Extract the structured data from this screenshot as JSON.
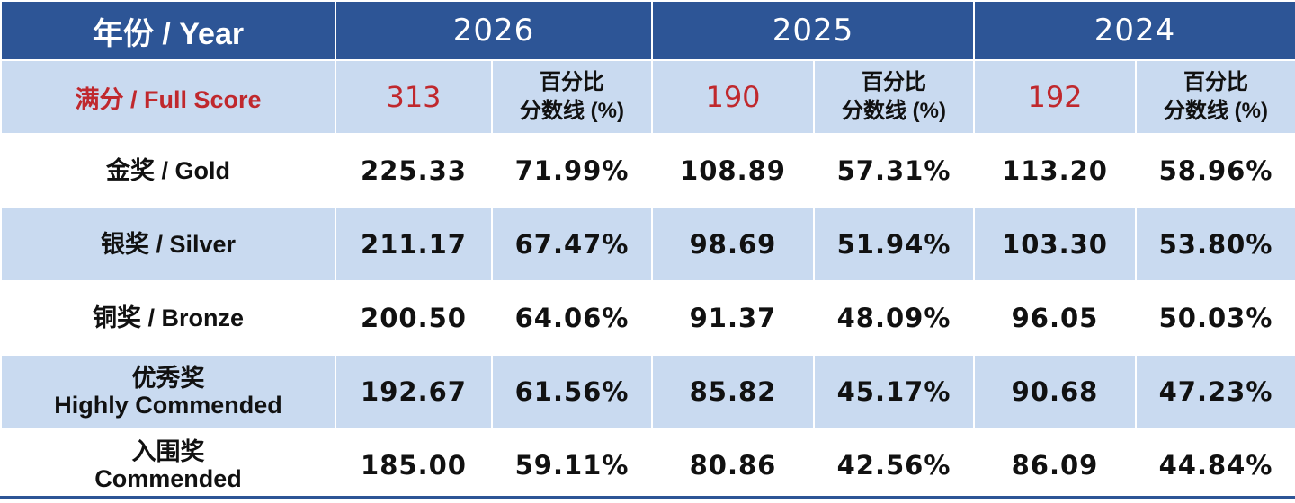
{
  "header": {
    "corner_label": "年份 / Year",
    "years": [
      "2026",
      "2025",
      "2024"
    ]
  },
  "full_score": {
    "label": "满分 / Full Score",
    "values": [
      "313",
      "190",
      "192"
    ],
    "pct_header_line1": "百分比",
    "pct_header_line2": "分数线 (%)"
  },
  "awards": [
    {
      "label_line1": "金奖 / Gold",
      "label_line2": "",
      "cells": [
        "225.33",
        "71.99%",
        "108.89",
        "57.31%",
        "113.20",
        "58.96%"
      ]
    },
    {
      "label_line1": "银奖 / Silver",
      "label_line2": "",
      "cells": [
        "211.17",
        "67.47%",
        "98.69",
        "51.94%",
        "103.30",
        "53.80%"
      ]
    },
    {
      "label_line1": "铜奖 / Bronze",
      "label_line2": "",
      "cells": [
        "200.50",
        "64.06%",
        "91.37",
        "48.09%",
        "96.05",
        "50.03%"
      ]
    },
    {
      "label_line1": "优秀奖",
      "label_line2": "Highly Commended",
      "cells": [
        "192.67",
        "61.56%",
        "85.82",
        "45.17%",
        "90.68",
        "47.23%"
      ]
    },
    {
      "label_line1": "入围奖",
      "label_line2": "Commended",
      "cells": [
        "185.00",
        "59.11%",
        "80.86",
        "42.56%",
        "86.09",
        "44.84%"
      ]
    }
  ],
  "colors": {
    "header_bg": "#2d5596",
    "band_bg": "#c9daf0",
    "accent_red": "#c0282d"
  }
}
